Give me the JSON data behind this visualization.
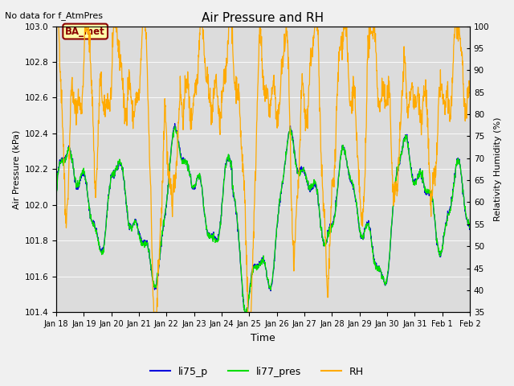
{
  "title": "Air Pressure and RH",
  "top_left_text": "No data for f_AtmPres",
  "xlabel": "Time",
  "ylabel_left": "Air Pressure (kPa)",
  "ylabel_right": "Relativity Humidity (%)",
  "ylim_left": [
    101.4,
    103.0
  ],
  "ylim_right": [
    35,
    100
  ],
  "yticks_left": [
    101.4,
    101.6,
    101.8,
    102.0,
    102.2,
    102.4,
    102.6,
    102.8,
    103.0
  ],
  "yticks_right": [
    35,
    40,
    45,
    50,
    55,
    60,
    65,
    70,
    75,
    80,
    85,
    90,
    95,
    100
  ],
  "xtick_labels": [
    "Jan 18",
    "Jan 19",
    "Jan 20",
    "Jan 21",
    "Jan 22",
    "Jan 23",
    "Jan 24",
    "Jan 25",
    "Jan 26",
    "Jan 27",
    "Jan 28",
    "Jan 29",
    "Jan 30",
    "Jan 31",
    "Feb 1",
    "Feb 2"
  ],
  "annotation_text": "BA_met",
  "line_li75_color": "#0000dd",
  "line_li77_color": "#00dd00",
  "line_rh_color": "#ffaa00",
  "legend_labels": [
    "li75_p",
    "li77_pres",
    "RH"
  ],
  "figsize": [
    6.4,
    4.8
  ],
  "dpi": 100,
  "bg_color": "#f0f0f0",
  "plot_bg_color": "#dcdcdc"
}
